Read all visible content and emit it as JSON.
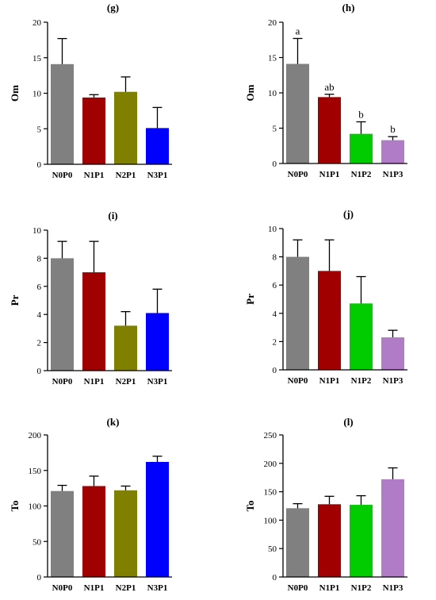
{
  "chart_data": [
    {
      "type": "bar",
      "title": "(g)",
      "ylabel": "Om",
      "categories": [
        "N0P0",
        "N1P1",
        "N2P1",
        "N3P1"
      ],
      "values": [
        14.1,
        9.4,
        10.2,
        5.1
      ],
      "errors": [
        3.6,
        0.4,
        2.1,
        2.9
      ],
      "colors": [
        "#808080",
        "#a00000",
        "#808000",
        "#0000ff"
      ],
      "ylim": [
        0,
        20
      ],
      "yticks": [
        0,
        5,
        10,
        15,
        20
      ],
      "annotations": [],
      "grid": false
    },
    {
      "type": "bar",
      "title": "(h)",
      "ylabel": "Om",
      "categories": [
        "N0P0",
        "N1P1",
        "N1P2",
        "N1P3"
      ],
      "values": [
        14.1,
        9.4,
        4.2,
        3.3
      ],
      "errors": [
        3.6,
        0.4,
        1.7,
        0.5
      ],
      "colors": [
        "#808080",
        "#a00000",
        "#00cc00",
        "#b07cc6"
      ],
      "ylim": [
        0,
        20
      ],
      "yticks": [
        0,
        5,
        10,
        15,
        20
      ],
      "annotations": [
        "a",
        "ab",
        "b",
        "b"
      ],
      "grid": false
    },
    {
      "type": "bar",
      "title": "(i)",
      "ylabel": "Pr",
      "categories": [
        "N0P0",
        "N1P1",
        "N2P1",
        "N3P1"
      ],
      "values": [
        8.0,
        7.0,
        3.2,
        4.1
      ],
      "errors": [
        1.2,
        2.2,
        1.0,
        1.7
      ],
      "colors": [
        "#808080",
        "#a00000",
        "#808000",
        "#0000ff"
      ],
      "ylim": [
        0,
        10
      ],
      "yticks": [
        0,
        2,
        4,
        6,
        8,
        10
      ],
      "annotations": [],
      "grid": false
    },
    {
      "type": "bar",
      "title": "(j)",
      "ylabel": "Pr",
      "categories": [
        "N0P0",
        "N1P1",
        "N1P2",
        "N1P3"
      ],
      "values": [
        8.0,
        7.0,
        4.7,
        2.3
      ],
      "errors": [
        1.2,
        2.2,
        1.9,
        0.5
      ],
      "colors": [
        "#808080",
        "#a00000",
        "#00cc00",
        "#b07cc6"
      ],
      "ylim": [
        0,
        10
      ],
      "yticks": [
        0,
        2,
        4,
        6,
        8,
        10
      ],
      "annotations": [],
      "grid": false
    },
    {
      "type": "bar",
      "title": "(k)",
      "ylabel": "To",
      "categories": [
        "N0P0",
        "N1P1",
        "N2P1",
        "N3P1"
      ],
      "values": [
        121,
        128,
        122,
        162
      ],
      "errors": [
        8,
        14,
        6,
        8
      ],
      "colors": [
        "#808080",
        "#a00000",
        "#808000",
        "#0000ff"
      ],
      "ylim": [
        0,
        200
      ],
      "yticks": [
        0,
        50,
        100,
        150,
        200
      ],
      "annotations": [],
      "grid": false
    },
    {
      "type": "bar",
      "title": "(l)",
      "ylabel": "To",
      "categories": [
        "N0P0",
        "N1P1",
        "N1P2",
        "N1P3"
      ],
      "values": [
        121,
        128,
        127,
        172
      ],
      "errors": [
        8,
        14,
        16,
        20
      ],
      "colors": [
        "#808080",
        "#a00000",
        "#00cc00",
        "#b07cc6"
      ],
      "ylim": [
        0,
        250
      ],
      "yticks": [
        0,
        50,
        100,
        150,
        200,
        250
      ],
      "annotations": [],
      "grid": false
    }
  ]
}
